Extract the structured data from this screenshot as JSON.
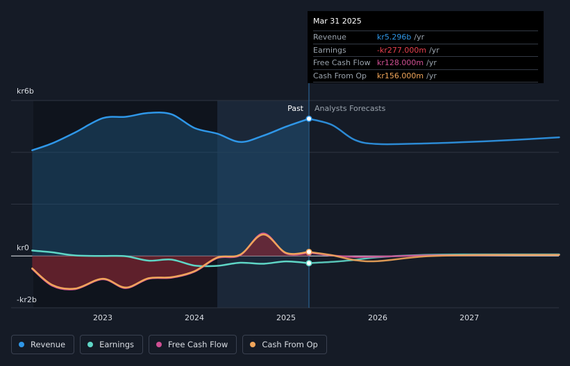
{
  "chart_data": {
    "type": "line",
    "y_axis": {
      "top_label": "kr6b",
      "zero_label": "kr0",
      "bottom_label": "-kr2b",
      "ylim": [
        -2000,
        6000
      ],
      "gridlines": [
        6000,
        4000,
        2000,
        0,
        -2000
      ]
    },
    "x_axis": {
      "ticks": [
        {
          "label": "2023",
          "x": 2023.0
        },
        {
          "label": "2024",
          "x": 2024.0
        },
        {
          "label": "2025",
          "x": 2025.0
        },
        {
          "label": "2026",
          "x": 2026.0
        },
        {
          "label": "2027",
          "x": 2027.0
        }
      ],
      "xlim": [
        2022.0,
        2027.98
      ]
    },
    "divider": {
      "x": 2025.25,
      "past_label": "Past",
      "forecast_label": "Analysts Forecasts"
    },
    "shaded_region": {
      "x_start": 2024.25,
      "x_end": 2025.25
    },
    "series": [
      {
        "name": "Revenue",
        "color": "#2f97e8",
        "points": [
          [
            2022.23,
            4080
          ],
          [
            2022.45,
            4350
          ],
          [
            2022.7,
            4770
          ],
          [
            2023.0,
            5320
          ],
          [
            2023.25,
            5370
          ],
          [
            2023.5,
            5520
          ],
          [
            2023.75,
            5470
          ],
          [
            2024.0,
            4940
          ],
          [
            2024.25,
            4720
          ],
          [
            2024.5,
            4400
          ],
          [
            2024.75,
            4640
          ],
          [
            2025.0,
            4990
          ],
          [
            2025.25,
            5296
          ],
          [
            2025.5,
            5060
          ],
          [
            2025.75,
            4480
          ],
          [
            2026.0,
            4320
          ],
          [
            2026.5,
            4340
          ],
          [
            2027.0,
            4400
          ],
          [
            2027.5,
            4480
          ],
          [
            2027.98,
            4580
          ]
        ]
      },
      {
        "name": "Earnings",
        "color": "#5fd6c6",
        "points": [
          [
            2022.23,
            210
          ],
          [
            2022.45,
            140
          ],
          [
            2022.7,
            20
          ],
          [
            2023.0,
            0
          ],
          [
            2023.25,
            -10
          ],
          [
            2023.5,
            -180
          ],
          [
            2023.75,
            -140
          ],
          [
            2024.0,
            -370
          ],
          [
            2024.25,
            -380
          ],
          [
            2024.5,
            -260
          ],
          [
            2024.75,
            -300
          ],
          [
            2025.0,
            -210
          ],
          [
            2025.25,
            -277
          ],
          [
            2025.5,
            -230
          ],
          [
            2025.75,
            -150
          ],
          [
            2026.0,
            -50
          ],
          [
            2026.5,
            40
          ],
          [
            2027.0,
            60
          ],
          [
            2027.5,
            60
          ],
          [
            2027.98,
            60
          ]
        ]
      },
      {
        "name": "Free Cash Flow",
        "color": "#cf4f93",
        "points": [
          [
            2022.23,
            -500
          ],
          [
            2022.45,
            -1150
          ],
          [
            2022.7,
            -1280
          ],
          [
            2023.0,
            -900
          ],
          [
            2023.25,
            -1240
          ],
          [
            2023.5,
            -880
          ],
          [
            2023.75,
            -840
          ],
          [
            2024.0,
            -610
          ],
          [
            2024.25,
            -80
          ],
          [
            2024.5,
            30
          ],
          [
            2024.75,
            870
          ],
          [
            2025.0,
            100
          ],
          [
            2025.25,
            128
          ],
          [
            2025.5,
            20
          ],
          [
            2025.75,
            -40
          ],
          [
            2026.0,
            -30
          ],
          [
            2026.5,
            20
          ],
          [
            2027.0,
            30
          ],
          [
            2027.5,
            40
          ],
          [
            2027.98,
            40
          ]
        ]
      },
      {
        "name": "Cash From Op",
        "color": "#f0a55a",
        "points": [
          [
            2022.23,
            -480
          ],
          [
            2022.45,
            -1120
          ],
          [
            2022.7,
            -1260
          ],
          [
            2023.0,
            -880
          ],
          [
            2023.25,
            -1220
          ],
          [
            2023.5,
            -860
          ],
          [
            2023.75,
            -820
          ],
          [
            2024.0,
            -590
          ],
          [
            2024.25,
            -60
          ],
          [
            2024.5,
            50
          ],
          [
            2024.75,
            830
          ],
          [
            2025.0,
            120
          ],
          [
            2025.25,
            156
          ],
          [
            2025.5,
            30
          ],
          [
            2025.75,
            -160
          ],
          [
            2026.0,
            -200
          ],
          [
            2026.5,
            -20
          ],
          [
            2027.0,
            30
          ],
          [
            2027.5,
            40
          ],
          [
            2027.98,
            40
          ]
        ]
      }
    ],
    "highlight_x": 2025.25
  },
  "tooltip": {
    "date": "Mar 31 2025",
    "rows": [
      {
        "label": "Revenue",
        "value": "kr5.296b",
        "unit": "/yr",
        "color": "#2f97e8"
      },
      {
        "label": "Earnings",
        "value": "-kr277.000m",
        "unit": "/yr",
        "color": "#e8414e"
      },
      {
        "label": "Free Cash Flow",
        "value": "kr128.000m",
        "unit": "/yr",
        "color": "#cf4f93"
      },
      {
        "label": "Cash From Op",
        "value": "kr156.000m",
        "unit": "/yr",
        "color": "#f0a55a"
      }
    ]
  },
  "legend": [
    {
      "label": "Revenue",
      "color": "#2f97e8"
    },
    {
      "label": "Earnings",
      "color": "#5fd6c6"
    },
    {
      "label": "Free Cash Flow",
      "color": "#cf4f93"
    },
    {
      "label": "Cash From Op",
      "color": "#f0a55a"
    }
  ]
}
